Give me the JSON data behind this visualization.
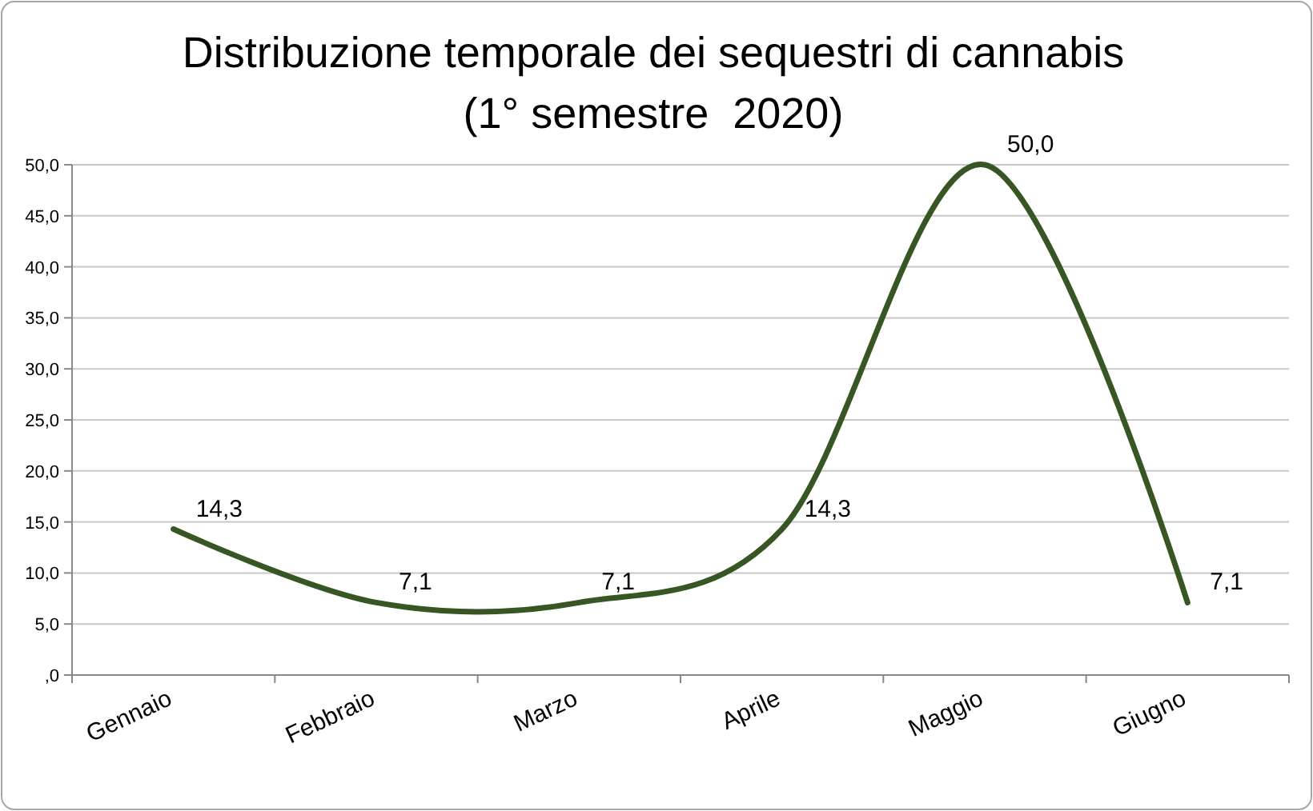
{
  "chart_data": {
    "type": "line",
    "title": "Distribuzione temporale dei sequestri di cannabis\n(1° semestre  2020)",
    "categories": [
      "Gennaio",
      "Febbraio",
      "Marzo",
      "Aprile",
      "Maggio",
      "Giugno"
    ],
    "series": [
      {
        "color": "#375623",
        "values": [
          14.3,
          7.1,
          7.1,
          14.3,
          50.0,
          7.1
        ],
        "value_labels": [
          "14,3",
          "7,1",
          "7,1",
          "14,3",
          "50,0",
          "7,1"
        ]
      }
    ],
    "ylim": [
      0,
      50
    ],
    "yticks": [
      {
        "value": 0,
        "label": ",0"
      },
      {
        "value": 5,
        "label": "5,0"
      },
      {
        "value": 10,
        "label": "10,0"
      },
      {
        "value": 15,
        "label": "15,0"
      },
      {
        "value": 20,
        "label": "20,0"
      },
      {
        "value": 25,
        "label": "25,0"
      },
      {
        "value": 30,
        "label": "30,0"
      },
      {
        "value": 35,
        "label": "35,0"
      },
      {
        "value": 40,
        "label": "40,0"
      },
      {
        "value": 45,
        "label": "45,0"
      },
      {
        "value": 50,
        "label": "50,0"
      }
    ],
    "grid": "y",
    "marker": "none",
    "line_style": "solid"
  }
}
